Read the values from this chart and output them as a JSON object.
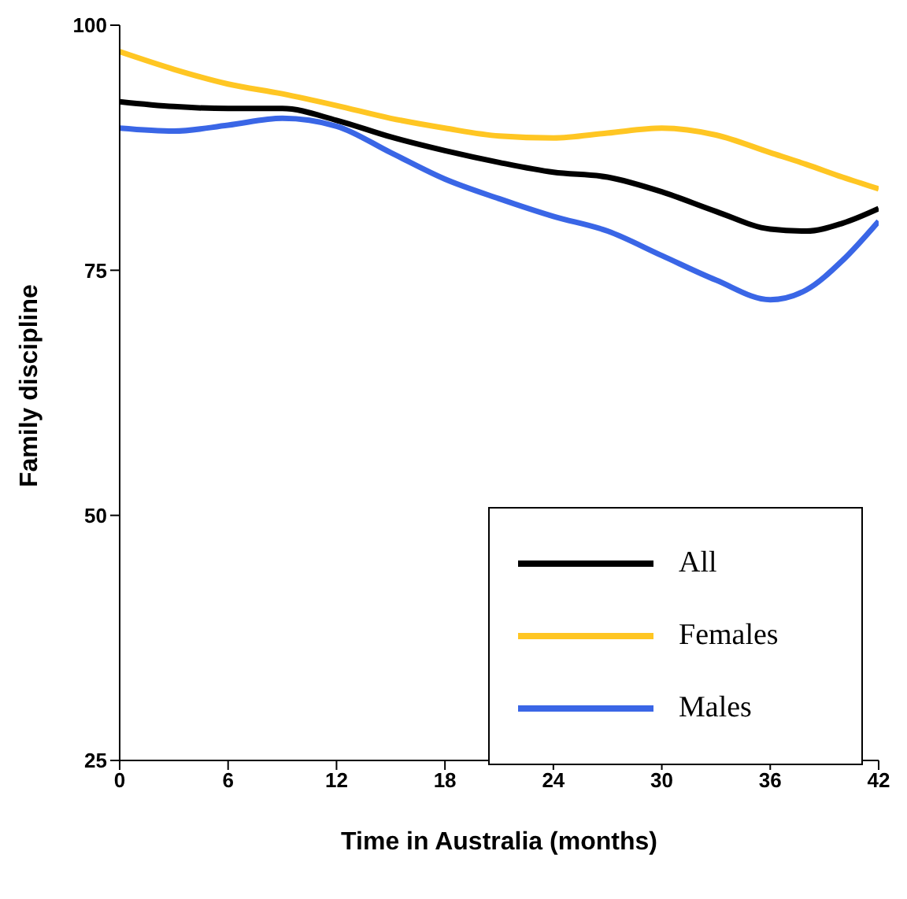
{
  "chart_data": {
    "type": "line",
    "xlabel": "Time in Australia (months)",
    "ylabel": "Family discipline",
    "xlim": [
      0,
      42
    ],
    "xticks": [
      0,
      6,
      12,
      18,
      24,
      30,
      36,
      42
    ],
    "ylim": [
      25,
      100
    ],
    "yticks": [
      25,
      50,
      75,
      100
    ],
    "grid": false,
    "legend": "bottom right",
    "marker": "none",
    "line_style": "solid",
    "x": [
      0,
      3,
      6,
      9,
      12,
      15,
      18,
      21,
      24,
      27,
      30,
      33,
      36,
      38,
      40,
      42
    ],
    "series": [
      {
        "name": "All",
        "color": "#000000",
        "values": [
          92.2,
          91.7,
          91.5,
          91.5,
          90.3,
          88.6,
          87.2,
          86,
          85,
          84.5,
          83,
          81,
          79.2,
          79,
          79.8,
          81.3
        ]
      },
      {
        "name": "Females",
        "color": "#ffc623",
        "values": [
          97.3,
          95.5,
          94,
          93,
          91.8,
          90.5,
          89.5,
          88.7,
          88.5,
          89,
          89.5,
          88.8,
          87,
          85.8,
          84.5,
          83.3
        ]
      },
      {
        "name": "Males",
        "color": "#3a66e6",
        "values": [
          89.5,
          89.2,
          89.8,
          90.5,
          89.7,
          87,
          84.3,
          82.3,
          80.5,
          79,
          76.5,
          74,
          72,
          73,
          76,
          80
        ]
      }
    ]
  }
}
